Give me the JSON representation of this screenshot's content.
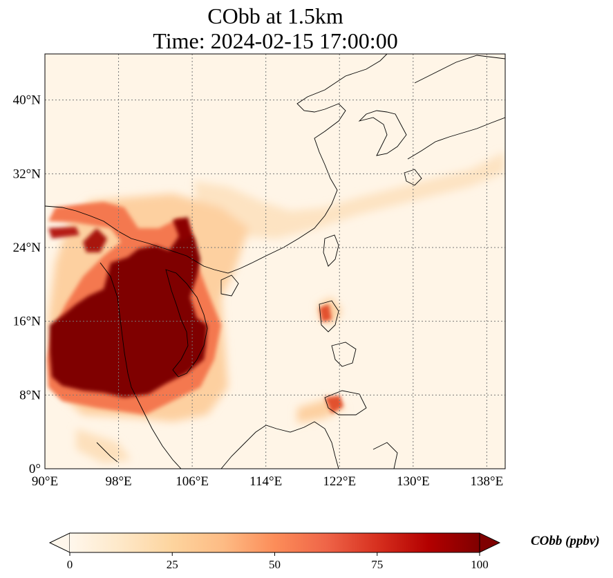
{
  "title_line1": "CObb at 1.5km",
  "title_line2": "Time: 2024-02-15 17:00:00",
  "map": {
    "lon_range": [
      90,
      140
    ],
    "lat_range": [
      0,
      45
    ],
    "lon_ticks": [
      {
        "value": 90,
        "label": "90°E"
      },
      {
        "value": 98,
        "label": "98°E"
      },
      {
        "value": 106,
        "label": "106°E"
      },
      {
        "value": 114,
        "label": "114°E"
      },
      {
        "value": 122,
        "label": "122°E"
      },
      {
        "value": 130,
        "label": "130°E"
      },
      {
        "value": 138,
        "label": "138°E"
      }
    ],
    "lat_ticks": [
      {
        "value": 0,
        "label": "0°"
      },
      {
        "value": 8,
        "label": "8°N"
      },
      {
        "value": 16,
        "label": "16°N"
      },
      {
        "value": 24,
        "label": "24°N"
      },
      {
        "value": 32,
        "label": "32°N"
      },
      {
        "value": 40,
        "label": "40°N"
      }
    ],
    "gridlines": true,
    "colormap": "OrRd"
  },
  "colorbar": {
    "label": "CObb (ppbv)",
    "range": [
      0,
      100
    ],
    "extend": "both",
    "ticks": [
      {
        "value": 0,
        "label": "0"
      },
      {
        "value": 25,
        "label": "25"
      },
      {
        "value": 50,
        "label": "50"
      },
      {
        "value": 75,
        "label": "75"
      },
      {
        "value": 100,
        "label": "100"
      }
    ],
    "colors": [
      "#fff7ec",
      "#fee8c8",
      "#fdd49e",
      "#fdbb84",
      "#fc8d59",
      "#ef6548",
      "#d7301f",
      "#b30000",
      "#7f0000"
    ]
  }
}
